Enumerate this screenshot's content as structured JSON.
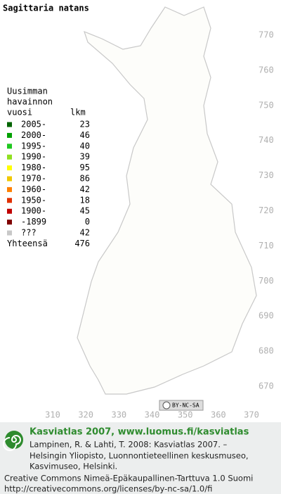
{
  "title": "Sagittaria natans",
  "legend": {
    "heading": [
      "Uusimman",
      "havainnon"
    ],
    "col_year": "vuosi",
    "col_count": "lkm",
    "rows": [
      {
        "label": "2005-",
        "count": 23,
        "color": "#006400"
      },
      {
        "label": "2000-",
        "count": 46,
        "color": "#00a000"
      },
      {
        "label": "1995-",
        "count": 40,
        "color": "#20c820"
      },
      {
        "label": "1990-",
        "count": 39,
        "color": "#90e020"
      },
      {
        "label": "1980-",
        "count": 95,
        "color": "#ffff00"
      },
      {
        "label": "1970-",
        "count": 86,
        "color": "#f0c800"
      },
      {
        "label": "1960-",
        "count": 42,
        "color": "#ff8000"
      },
      {
        "label": "1950-",
        "count": 18,
        "color": "#e03000"
      },
      {
        "label": "1900-",
        "count": 45,
        "color": "#c00000"
      },
      {
        "label": "-1899",
        "count": 0,
        "color": "#800000"
      },
      {
        "label": "???",
        "count": 42,
        "color": "#c8c8c8"
      }
    ],
    "total_label": "Yhteensä",
    "total": 476
  },
  "axes": {
    "y_labels": [
      770,
      760,
      750,
      740,
      730,
      720,
      710,
      700,
      690,
      680,
      670
    ],
    "x_labels": [
      310,
      320,
      330,
      340,
      350,
      360,
      370
    ]
  },
  "license_badge": "BY-NC-SA",
  "footer": {
    "heading": "Kasviatlas 2007, www.luomus.fi/kasviatlas",
    "citation": [
      "Lampinen, R. & Lahti, T. 2008: Kasviatlas 2007. –",
      "Helsingin Yliopisto, Luonnontieteellinen keskusmuseo,",
      "Kasvimuseo, Helsinki."
    ],
    "license": [
      "Creative Commons Nimeä-Epäkaupallinen-Tarttuva 1.0 Suomi",
      "http://creativecommons.org/licenses/by-nc-sa/1.0/fi"
    ]
  }
}
